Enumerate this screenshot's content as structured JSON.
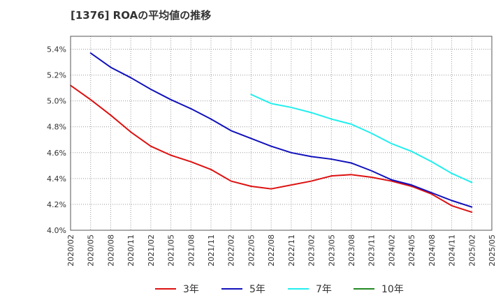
{
  "chart_data": {
    "type": "line",
    "title": "[1376]  ROAの平均値の推移",
    "xlabel": "",
    "ylabel": "",
    "ylim": [
      4.0,
      5.5
    ],
    "yticks": [
      "4.0%",
      "4.2%",
      "4.4%",
      "4.6%",
      "4.8%",
      "5.0%",
      "5.2%",
      "5.4%"
    ],
    "ytick_values": [
      4.0,
      4.2,
      4.4,
      4.6,
      4.8,
      5.0,
      5.2,
      5.4
    ],
    "x": [
      "2020/02",
      "2020/05",
      "2020/08",
      "2020/11",
      "2021/02",
      "2021/05",
      "2021/08",
      "2021/11",
      "2022/02",
      "2022/05",
      "2022/08",
      "2022/11",
      "2023/02",
      "2023/05",
      "2023/08",
      "2023/11",
      "2024/02",
      "2024/05",
      "2024/08",
      "2024/11",
      "2025/02",
      "2025/05"
    ],
    "grid": true,
    "legend_position": "bottom",
    "series": [
      {
        "name": "3年",
        "color": "#dd1111",
        "values": [
          5.12,
          5.01,
          4.89,
          4.76,
          4.65,
          4.58,
          4.53,
          4.47,
          4.38,
          4.34,
          4.32,
          4.35,
          4.38,
          4.42,
          4.43,
          4.41,
          4.38,
          4.34,
          4.28,
          4.19,
          4.14,
          null
        ]
      },
      {
        "name": "5年",
        "color": "#1111bb",
        "values": [
          null,
          5.37,
          5.26,
          5.18,
          5.09,
          5.01,
          4.94,
          4.86,
          4.77,
          4.71,
          4.65,
          4.6,
          4.57,
          4.55,
          4.52,
          4.46,
          4.39,
          4.35,
          4.29,
          4.23,
          4.18,
          null
        ]
      },
      {
        "name": "7年",
        "color": "#22eeee",
        "values": [
          null,
          null,
          null,
          null,
          null,
          null,
          null,
          null,
          null,
          5.05,
          4.98,
          4.95,
          4.91,
          4.86,
          4.82,
          4.75,
          4.67,
          4.61,
          4.53,
          4.44,
          4.37,
          null
        ]
      },
      {
        "name": "10年",
        "color": "#228822",
        "values": [
          null,
          null,
          null,
          null,
          null,
          null,
          null,
          null,
          null,
          null,
          null,
          null,
          null,
          null,
          null,
          null,
          null,
          null,
          null,
          null,
          null,
          null
        ]
      }
    ]
  }
}
